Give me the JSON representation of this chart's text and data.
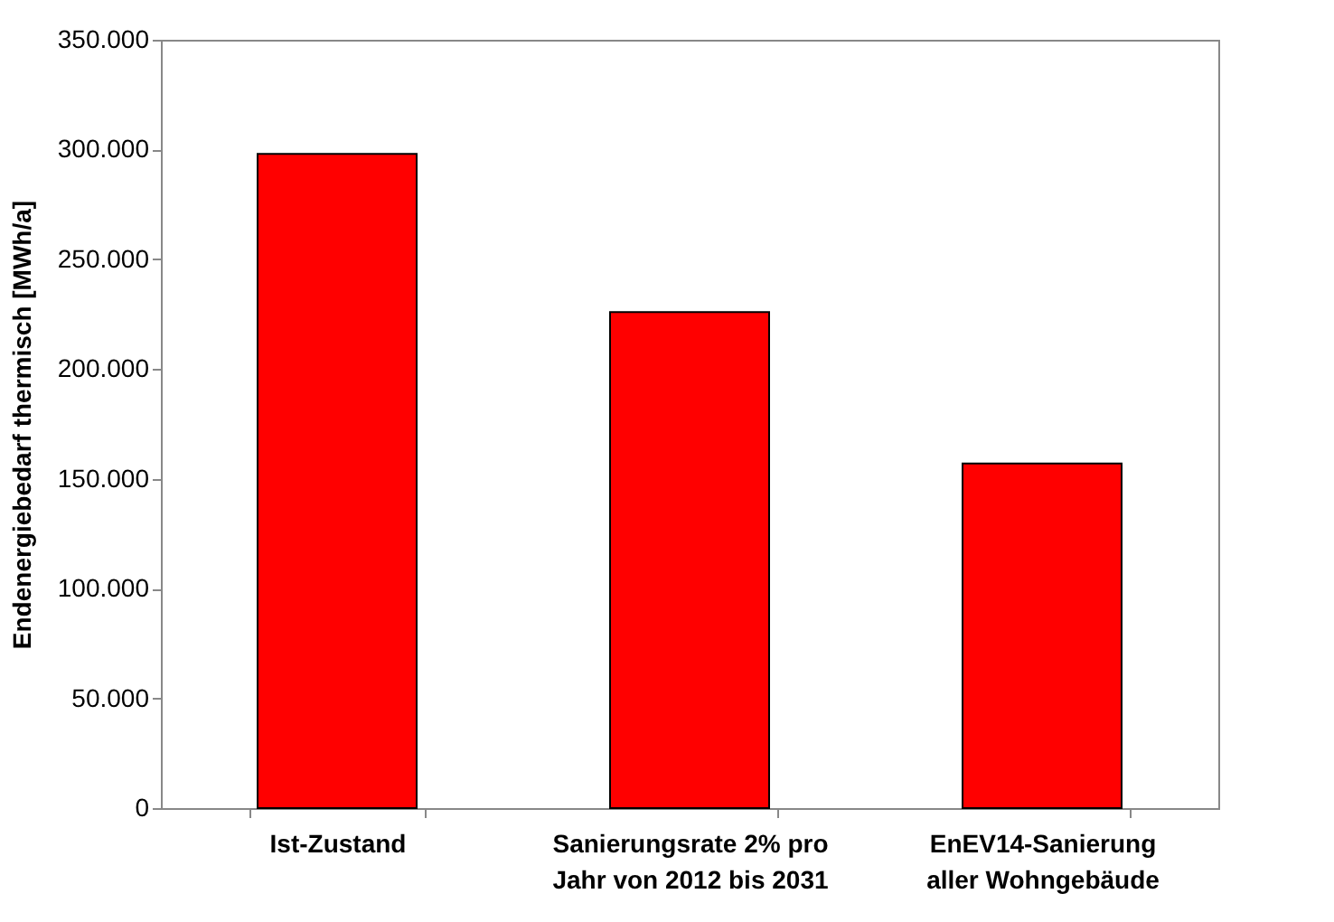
{
  "chart_data": {
    "type": "bar",
    "ylabel": "Endenergiebedarf thermisch [MWh/a]",
    "categories": [
      "Ist-Zustand",
      "Sanierungsrate 2% pro\nJahr von 2012 bis 2031",
      "EnEV14-Sanierung\naller Wohngebäude"
    ],
    "values": [
      298000,
      226000,
      157000
    ],
    "color": "#ff0000",
    "ylim": [
      0,
      350000
    ],
    "yticks": [
      {
        "value": 0,
        "label": "0"
      },
      {
        "value": 50000,
        "label": "50.000"
      },
      {
        "value": 100000,
        "label": "100.000"
      },
      {
        "value": 150000,
        "label": "150.000"
      },
      {
        "value": 200000,
        "label": "200.000"
      },
      {
        "value": 250000,
        "label": "250.000"
      },
      {
        "value": 300000,
        "label": "300.000"
      },
      {
        "value": 350000,
        "label": "350.000"
      }
    ],
    "grid": false
  }
}
